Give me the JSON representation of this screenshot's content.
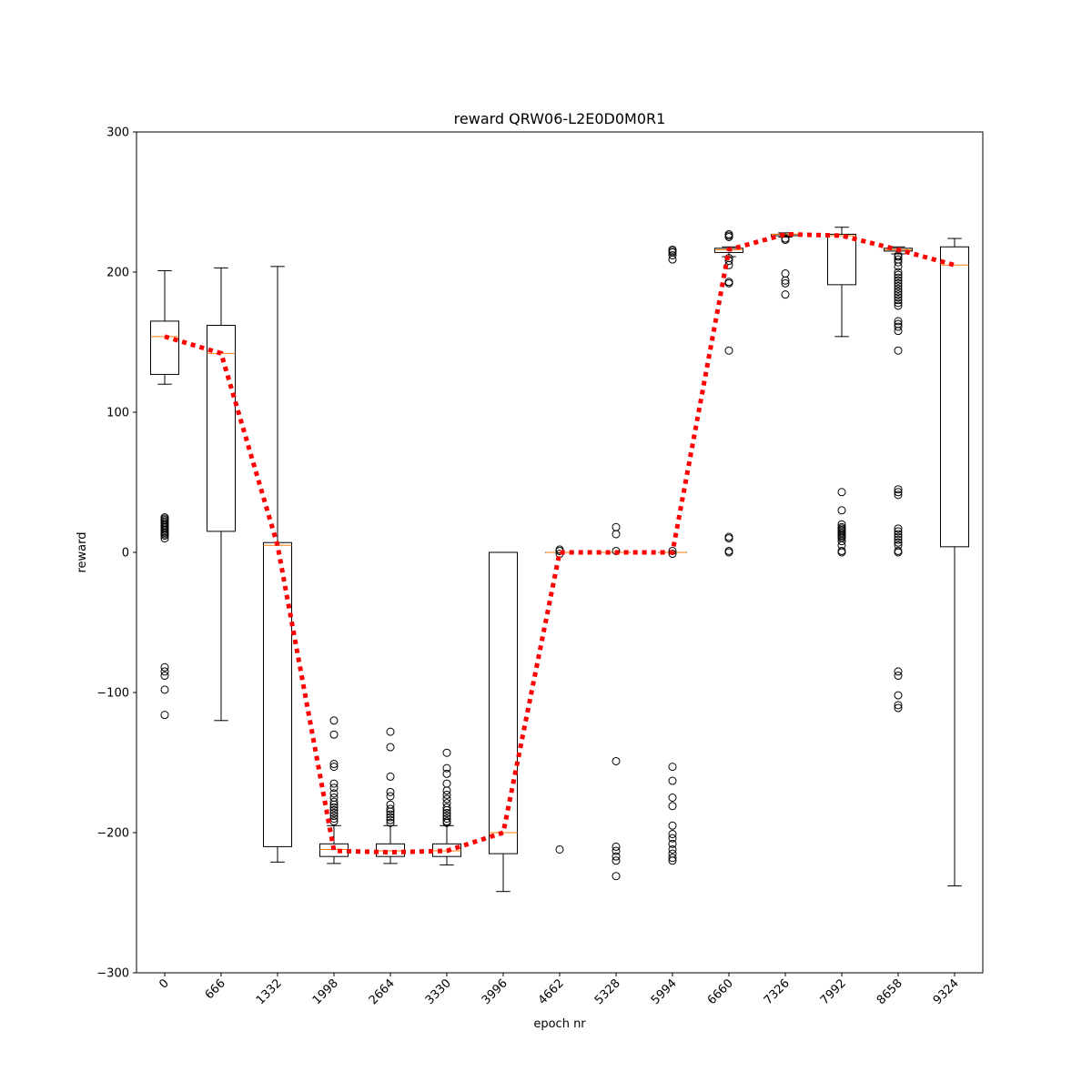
{
  "chart_data": {
    "type": "box",
    "title": "reward QRW06-L2E0D0M0R1",
    "xlabel": "epoch nr",
    "ylabel": "reward",
    "ylim": [
      -300,
      300
    ],
    "yticks": [
      -300,
      -200,
      -100,
      0,
      100,
      200,
      300
    ],
    "yticklabels": [
      "−300",
      "−200",
      "−100",
      "0",
      "100",
      "200",
      "300"
    ],
    "categories": [
      "0",
      "666",
      "1332",
      "1998",
      "2664",
      "3330",
      "3996",
      "4662",
      "5328",
      "5994",
      "6660",
      "7326",
      "7992",
      "8658",
      "9324"
    ],
    "grid": false,
    "mean_line": [
      154,
      142,
      5,
      -213,
      -214,
      -213,
      -200,
      0,
      0,
      0,
      216,
      227,
      226,
      216,
      205
    ],
    "boxes": [
      {
        "whislo": 120,
        "q1": 127,
        "med": 154,
        "q3": 165,
        "whishi": 201,
        "fliers": [
          25,
          24,
          23,
          22,
          21,
          20,
          19,
          18,
          17,
          16,
          15,
          14,
          13,
          12,
          10,
          -82,
          -85,
          -88,
          -98,
          -116
        ]
      },
      {
        "whislo": -120,
        "q1": 15,
        "med": 142,
        "q3": 162,
        "whishi": 203,
        "fliers": []
      },
      {
        "whislo": -221,
        "q1": -210,
        "med": 5,
        "q3": 7,
        "whishi": 204,
        "fliers": []
      },
      {
        "whislo": -222,
        "q1": -217,
        "med": -212,
        "q3": -208,
        "whishi": -195,
        "fliers": [
          -120,
          -130,
          -151,
          -153,
          -165,
          -168,
          -172,
          -175,
          -178,
          -180,
          -182,
          -184,
          -186,
          -188,
          -190,
          -192
        ]
      },
      {
        "whislo": -222,
        "q1": -217,
        "med": -213,
        "q3": -208,
        "whishi": -195,
        "fliers": [
          -128,
          -139,
          -160,
          -171,
          -174,
          -180,
          -183,
          -185,
          -187,
          -189,
          -191,
          -193
        ]
      },
      {
        "whislo": -223,
        "q1": -217,
        "med": -213,
        "q3": -208,
        "whishi": -195,
        "fliers": [
          -143,
          -154,
          -158,
          -165,
          -170,
          -173,
          -176,
          -179,
          -182,
          -184,
          -186,
          -188,
          -190,
          -192,
          -193
        ]
      },
      {
        "whislo": -242,
        "q1": -215,
        "med": -200,
        "q3": 0,
        "whishi": 0,
        "fliers": []
      },
      {
        "whislo": 0,
        "q1": 0,
        "med": 0,
        "q3": 0,
        "whishi": 0,
        "fliers": [
          2,
          1,
          -1,
          -212
        ]
      },
      {
        "whislo": 0,
        "q1": 0,
        "med": 0,
        "q3": 0,
        "whishi": 0,
        "fliers": [
          18,
          13,
          1,
          -149,
          -210,
          -213,
          -217,
          -220,
          -231
        ]
      },
      {
        "whislo": 0,
        "q1": 0,
        "med": 0,
        "q3": 0,
        "whishi": 0,
        "fliers": [
          216,
          215,
          214,
          212,
          209,
          1,
          -1,
          -153,
          -163,
          -175,
          -181,
          -195,
          -201,
          -204,
          -208,
          -212,
          -215,
          -218,
          -220
        ]
      },
      {
        "whislo": 211,
        "q1": 214,
        "med": 216,
        "q3": 217,
        "whishi": 218,
        "fliers": [
          227,
          226,
          225,
          210,
          208,
          205,
          193,
          192,
          144,
          11,
          10,
          1,
          0
        ]
      },
      {
        "whislo": 225,
        "q1": 226,
        "med": 227,
        "q3": 227,
        "whishi": 228,
        "fliers": [
          224,
          223,
          199,
          194,
          192,
          184
        ]
      },
      {
        "whislo": 154,
        "q1": 191,
        "med": 226,
        "q3": 227,
        "whishi": 232,
        "fliers": [
          43,
          30,
          20,
          18,
          17,
          16,
          15,
          14,
          13,
          12,
          11,
          10,
          8,
          5,
          1,
          0
        ]
      },
      {
        "whislo": 213,
        "q1": 215,
        "med": 216,
        "q3": 217,
        "whishi": 218,
        "fliers": [
          212,
          211,
          209,
          207,
          204,
          200,
          198,
          196,
          194,
          192,
          190,
          188,
          186,
          184,
          182,
          180,
          178,
          176,
          165,
          163,
          161,
          158,
          144,
          45,
          43,
          41,
          17,
          15,
          13,
          11,
          9,
          7,
          5,
          1,
          0,
          -85,
          -88,
          -102,
          -109,
          -111
        ]
      },
      {
        "whislo": -238,
        "q1": 4,
        "med": 205,
        "q3": 218,
        "whishi": 224,
        "fliers": []
      }
    ]
  }
}
